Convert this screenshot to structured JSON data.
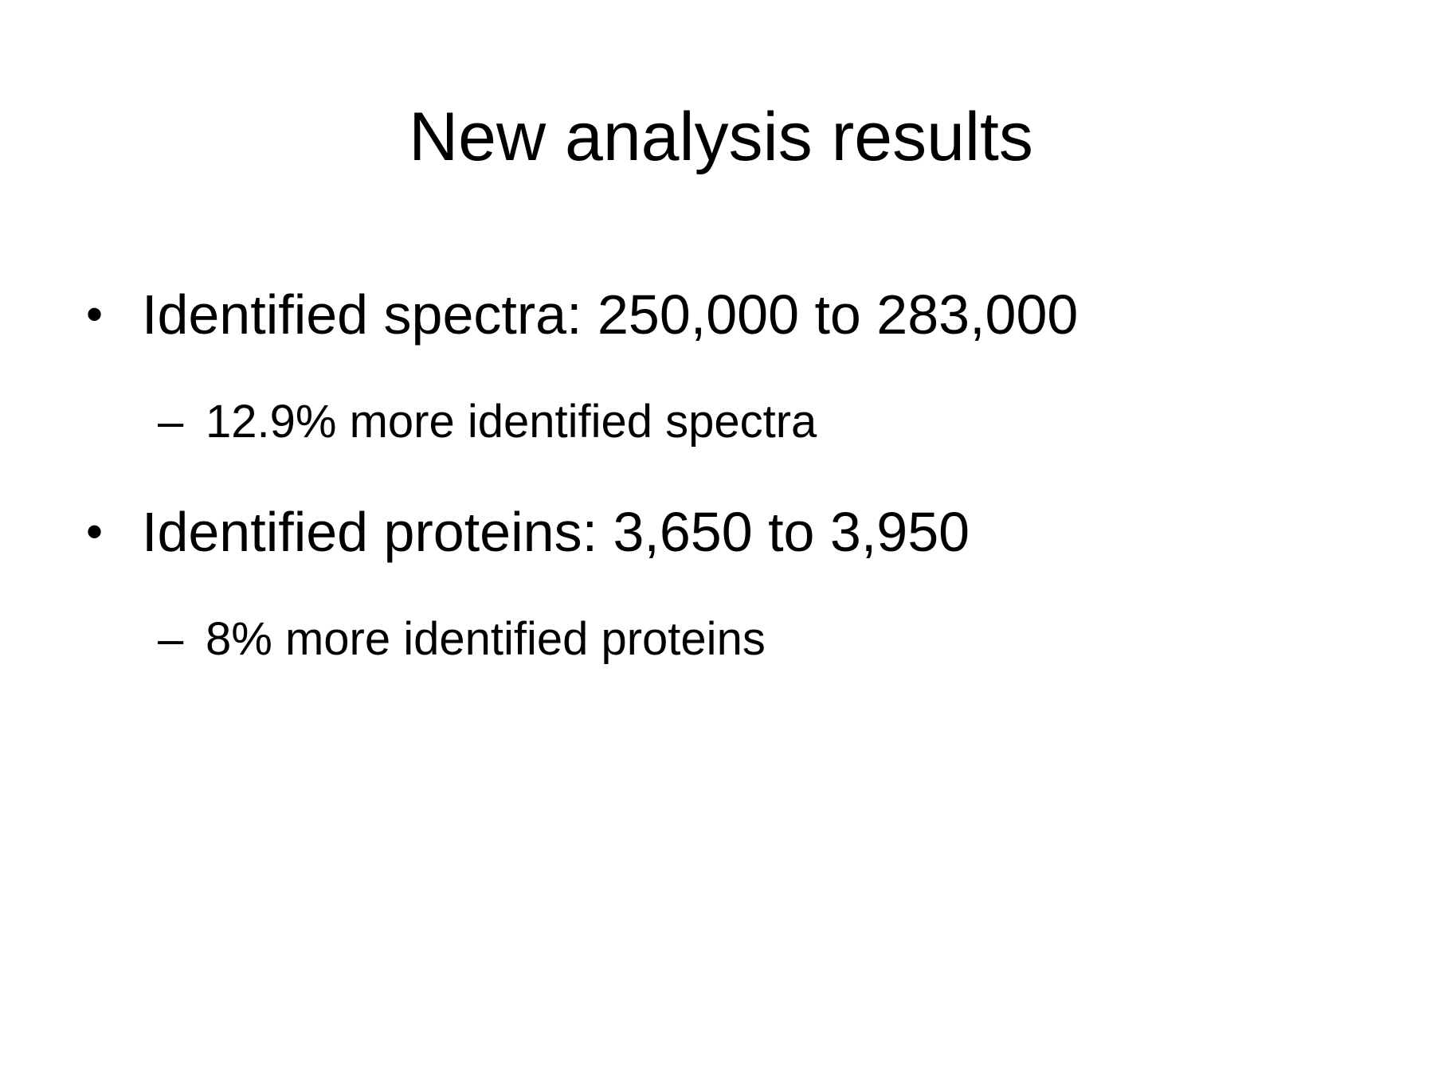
{
  "slide": {
    "title": "New analysis results",
    "bullets": [
      {
        "marker": "•",
        "text": "Identified spectra: 250,000 to 283,000",
        "sub": {
          "marker": "–",
          "text": "12.9% more identified spectra"
        }
      },
      {
        "marker": "•",
        "text": "Identified proteins: 3,650 to 3,950",
        "sub": {
          "marker": "–",
          "text": "8% more identified proteins"
        }
      }
    ]
  }
}
